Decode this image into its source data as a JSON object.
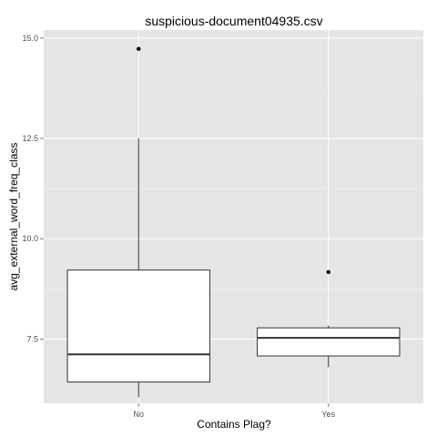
{
  "chart_data": {
    "type": "box",
    "title": "suspicious-document04935.csv",
    "xlabel": "Contains Plag?",
    "ylabel": "avg_external_word_freq_class",
    "categories": [
      "No",
      "Yes"
    ],
    "ylim": [
      5.9,
      15.2
    ],
    "yticks": [
      7.5,
      10.0,
      12.5,
      15.0
    ],
    "ytick_labels": [
      "7.5",
      "10.0",
      "12.5",
      "15.0"
    ],
    "grid": true,
    "boxes": [
      {
        "category": "No",
        "lower_whisker": 6.05,
        "q1": 6.43,
        "median": 7.12,
        "q3": 9.22,
        "upper_whisker": 12.5,
        "outliers": [
          14.73
        ]
      },
      {
        "category": "Yes",
        "lower_whisker": 6.8,
        "q1": 7.08,
        "median": 7.53,
        "q3": 7.78,
        "upper_whisker": 7.84,
        "outliers": [
          9.17
        ]
      }
    ],
    "colors": {
      "panel": "#e5e5e5",
      "grid_major": "#ffffff",
      "grid_minor": "#f2f2f2",
      "box_fill": "#ffffff",
      "box_stroke": "#333333"
    }
  }
}
